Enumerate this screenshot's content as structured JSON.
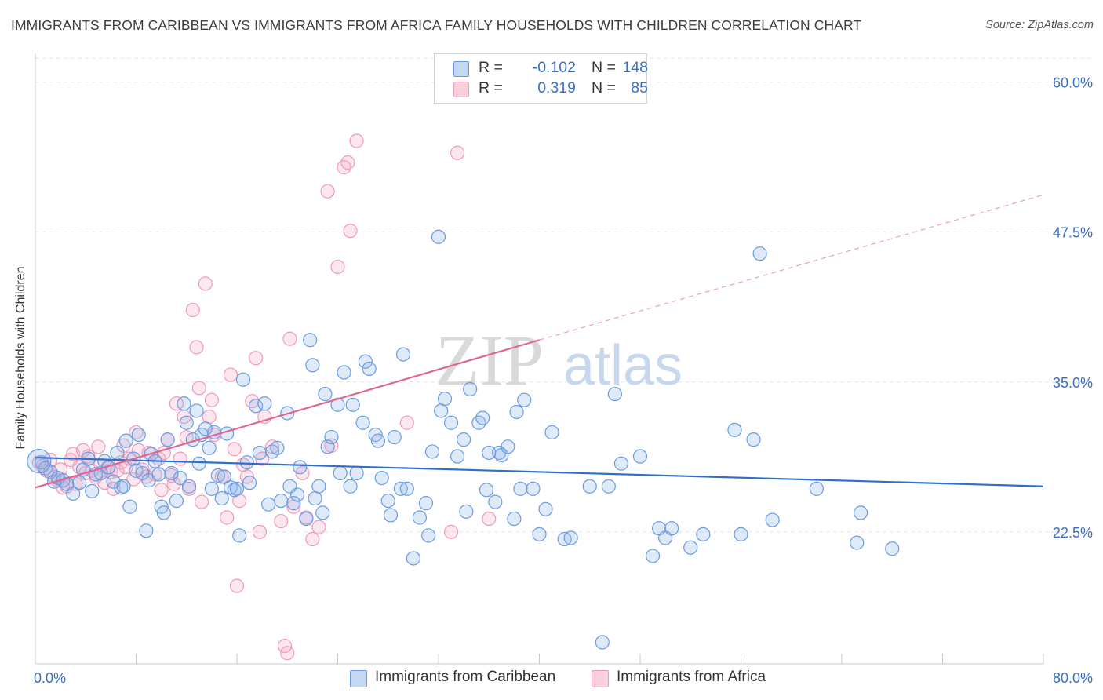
{
  "title": "IMMIGRANTS FROM CARIBBEAN VS IMMIGRANTS FROM AFRICA FAMILY HOUSEHOLDS WITH CHILDREN CORRELATION CHART",
  "source": "Source: ZipAtlas.com",
  "watermark": {
    "zip": "ZIP",
    "atlas": "atlas"
  },
  "legend": {
    "r_label": "R =",
    "n_label": "N =",
    "series": [
      {
        "name": "Immigrants from Caribbean",
        "r": "-0.102",
        "n": "148"
      },
      {
        "name": "Immigrants from Africa",
        "r": "0.319",
        "n": "85"
      }
    ]
  },
  "chart_data": {
    "type": "scatter",
    "title": "IMMIGRANTS FROM CARIBBEAN VS IMMIGRANTS FROM AFRICA FAMILY HOUSEHOLDS WITH CHILDREN CORRELATION CHART",
    "xlabel": "",
    "ylabel": "Family Households with Children",
    "xlim": [
      0,
      80
    ],
    "ylim": [
      11.5,
      62
    ],
    "x_tick_labels": [
      "0.0%",
      "80.0%"
    ],
    "y_ticks": [
      22.5,
      35.0,
      47.5,
      60.0
    ],
    "y_tick_labels": [
      "22.5%",
      "35.0%",
      "47.5%",
      "60.0%"
    ],
    "grid": true,
    "legend_position": "top-center",
    "colors": {
      "caribbean": "#6a9be0",
      "africa": "#ef9ab8",
      "caribbean_line": "#2f6fca",
      "africa_line": "#e0668f",
      "tick": "#3a6fc6"
    },
    "series": [
      {
        "name": "Immigrants from Caribbean",
        "points": [
          [
            0.5,
            28.3
          ],
          [
            0.8,
            27.8
          ],
          [
            1.2,
            27.5
          ],
          [
            1.5,
            26.7
          ],
          [
            1.8,
            27.0
          ],
          [
            2.2,
            26.8
          ],
          [
            2.5,
            26.5
          ],
          [
            3.0,
            25.7
          ],
          [
            3.5,
            26.6
          ],
          [
            3.8,
            27.7
          ],
          [
            4.2,
            28.6
          ],
          [
            4.5,
            25.9
          ],
          [
            4.8,
            27.3
          ],
          [
            5.2,
            27.4
          ],
          [
            5.5,
            28.4
          ],
          [
            5.8,
            27.9
          ],
          [
            6.2,
            26.7
          ],
          [
            6.5,
            29.1
          ],
          [
            6.8,
            26.2
          ],
          [
            7.0,
            26.3
          ],
          [
            7.2,
            30.1
          ],
          [
            7.5,
            24.6
          ],
          [
            7.8,
            28.6
          ],
          [
            8.0,
            27.6
          ],
          [
            8.2,
            30.6
          ],
          [
            8.5,
            27.4
          ],
          [
            8.8,
            22.6
          ],
          [
            9.0,
            26.8
          ],
          [
            9.2,
            29.0
          ],
          [
            9.5,
            28.4
          ],
          [
            9.8,
            27.3
          ],
          [
            10.0,
            24.6
          ],
          [
            10.2,
            24.1
          ],
          [
            10.5,
            30.2
          ],
          [
            10.8,
            27.4
          ],
          [
            11.2,
            25.1
          ],
          [
            11.5,
            27.0
          ],
          [
            11.8,
            33.2
          ],
          [
            12.0,
            31.6
          ],
          [
            12.2,
            26.3
          ],
          [
            12.5,
            30.2
          ],
          [
            12.8,
            32.6
          ],
          [
            13.0,
            28.2
          ],
          [
            13.2,
            30.6
          ],
          [
            13.5,
            31.1
          ],
          [
            13.8,
            29.5
          ],
          [
            14.0,
            26.1
          ],
          [
            14.2,
            30.8
          ],
          [
            14.5,
            27.2
          ],
          [
            14.8,
            25.3
          ],
          [
            15.0,
            27.1
          ],
          [
            15.2,
            30.7
          ],
          [
            15.5,
            26.2
          ],
          [
            15.8,
            26.0
          ],
          [
            16.0,
            26.1
          ],
          [
            16.5,
            35.2
          ],
          [
            16.2,
            22.2
          ],
          [
            16.8,
            28.3
          ],
          [
            17.0,
            26.6
          ],
          [
            17.5,
            33.0
          ],
          [
            17.8,
            29.1
          ],
          [
            18.2,
            33.2
          ],
          [
            18.5,
            24.8
          ],
          [
            18.8,
            29.2
          ],
          [
            19.2,
            29.5
          ],
          [
            19.5,
            25.1
          ],
          [
            20.0,
            32.4
          ],
          [
            20.2,
            26.3
          ],
          [
            20.5,
            24.9
          ],
          [
            20.8,
            25.6
          ],
          [
            21.0,
            27.9
          ],
          [
            21.5,
            23.6
          ],
          [
            21.8,
            38.5
          ],
          [
            22.0,
            36.4
          ],
          [
            22.2,
            25.3
          ],
          [
            22.5,
            26.3
          ],
          [
            22.8,
            24.1
          ],
          [
            23.0,
            34.0
          ],
          [
            23.2,
            29.6
          ],
          [
            23.5,
            30.4
          ],
          [
            24.0,
            33.1
          ],
          [
            24.2,
            27.4
          ],
          [
            24.5,
            35.8
          ],
          [
            25.0,
            26.3
          ],
          [
            25.2,
            33.1
          ],
          [
            25.5,
            27.4
          ],
          [
            26.0,
            31.6
          ],
          [
            26.2,
            36.7
          ],
          [
            26.5,
            36.1
          ],
          [
            27.0,
            30.6
          ],
          [
            27.2,
            30.1
          ],
          [
            27.5,
            27.0
          ],
          [
            28.0,
            25.1
          ],
          [
            28.2,
            23.9
          ],
          [
            28.5,
            30.4
          ],
          [
            29.0,
            26.1
          ],
          [
            29.2,
            37.3
          ],
          [
            29.5,
            26.1
          ],
          [
            30.0,
            20.3
          ],
          [
            30.5,
            23.7
          ],
          [
            31.0,
            24.9
          ],
          [
            31.2,
            22.2
          ],
          [
            31.5,
            29.2
          ],
          [
            32.0,
            47.1
          ],
          [
            32.2,
            32.6
          ],
          [
            32.5,
            33.6
          ],
          [
            33.0,
            31.6
          ],
          [
            33.5,
            28.8
          ],
          [
            34.0,
            30.2
          ],
          [
            34.2,
            24.2
          ],
          [
            34.5,
            34.4
          ],
          [
            35.2,
            31.6
          ],
          [
            35.5,
            32.0
          ],
          [
            35.8,
            26.0
          ],
          [
            36.0,
            29.1
          ],
          [
            36.5,
            25.0
          ],
          [
            36.8,
            29.1
          ],
          [
            37.0,
            28.9
          ],
          [
            37.5,
            29.6
          ],
          [
            38.0,
            23.6
          ],
          [
            38.2,
            32.5
          ],
          [
            38.5,
            26.1
          ],
          [
            38.8,
            33.5
          ],
          [
            39.5,
            26.1
          ],
          [
            40.0,
            22.3
          ],
          [
            40.5,
            24.4
          ],
          [
            41.0,
            30.8
          ],
          [
            42.0,
            21.9
          ],
          [
            42.5,
            22.0
          ],
          [
            44.0,
            26.3
          ],
          [
            45.0,
            13.3
          ],
          [
            45.5,
            26.3
          ],
          [
            46.0,
            34.0
          ],
          [
            46.5,
            28.2
          ],
          [
            48.0,
            28.8
          ],
          [
            49.0,
            20.5
          ],
          [
            49.5,
            22.8
          ],
          [
            50.0,
            22.0
          ],
          [
            50.5,
            22.8
          ],
          [
            52.0,
            21.2
          ],
          [
            53.0,
            22.3
          ],
          [
            55.5,
            31.0
          ],
          [
            56.0,
            22.3
          ],
          [
            57.0,
            30.2
          ],
          [
            57.5,
            45.7
          ],
          [
            58.5,
            23.5
          ],
          [
            62.0,
            26.1
          ],
          [
            65.2,
            21.6
          ],
          [
            65.5,
            24.1
          ],
          [
            68.0,
            21.1
          ]
        ]
      },
      {
        "name": "Immigrants from Africa",
        "points": [
          [
            0.3,
            28.3
          ],
          [
            0.6,
            28.0
          ],
          [
            0.9,
            27.6
          ],
          [
            1.2,
            28.5
          ],
          [
            1.5,
            27.1
          ],
          [
            1.8,
            26.8
          ],
          [
            2.0,
            27.7
          ],
          [
            2.2,
            26.2
          ],
          [
            2.5,
            26.3
          ],
          [
            2.8,
            28.5
          ],
          [
            3.0,
            29.0
          ],
          [
            3.2,
            26.5
          ],
          [
            3.5,
            27.9
          ],
          [
            3.8,
            29.3
          ],
          [
            4.0,
            27.4
          ],
          [
            4.2,
            28.8
          ],
          [
            4.5,
            27.6
          ],
          [
            4.8,
            27.1
          ],
          [
            5.0,
            29.6
          ],
          [
            5.2,
            28.1
          ],
          [
            5.5,
            26.6
          ],
          [
            5.8,
            27.8
          ],
          [
            6.0,
            27.5
          ],
          [
            6.2,
            26.1
          ],
          [
            6.5,
            27.6
          ],
          [
            6.8,
            28.3
          ],
          [
            7.0,
            29.7
          ],
          [
            7.2,
            27.9
          ],
          [
            7.5,
            28.6
          ],
          [
            7.8,
            26.9
          ],
          [
            8.0,
            30.8
          ],
          [
            8.2,
            29.3
          ],
          [
            8.5,
            27.7
          ],
          [
            8.8,
            27.1
          ],
          [
            9.0,
            29.1
          ],
          [
            9.5,
            27.3
          ],
          [
            9.8,
            28.6
          ],
          [
            10.0,
            26.0
          ],
          [
            10.2,
            29.1
          ],
          [
            10.5,
            30.2
          ],
          [
            10.8,
            27.2
          ],
          [
            11.0,
            26.5
          ],
          [
            11.2,
            33.2
          ],
          [
            11.5,
            28.6
          ],
          [
            11.8,
            32.1
          ],
          [
            12.0,
            30.4
          ],
          [
            12.2,
            26.1
          ],
          [
            12.5,
            41.0
          ],
          [
            12.8,
            37.9
          ],
          [
            13.0,
            34.5
          ],
          [
            13.2,
            25.0
          ],
          [
            13.5,
            43.2
          ],
          [
            13.8,
            32.1
          ],
          [
            14.0,
            33.5
          ],
          [
            14.2,
            30.6
          ],
          [
            14.8,
            27.1
          ],
          [
            15.2,
            23.7
          ],
          [
            15.5,
            35.6
          ],
          [
            15.8,
            29.4
          ],
          [
            16.0,
            18.0
          ],
          [
            16.2,
            25.1
          ],
          [
            16.5,
            28.1
          ],
          [
            16.8,
            27.1
          ],
          [
            17.2,
            33.4
          ],
          [
            17.5,
            37.0
          ],
          [
            17.8,
            22.5
          ],
          [
            18.0,
            28.6
          ],
          [
            18.2,
            32.1
          ],
          [
            18.8,
            29.6
          ],
          [
            19.5,
            23.4
          ],
          [
            19.8,
            13.0
          ],
          [
            20.0,
            12.4
          ],
          [
            20.2,
            38.6
          ],
          [
            20.5,
            24.6
          ],
          [
            21.2,
            27.4
          ],
          [
            21.5,
            23.7
          ],
          [
            22.0,
            21.9
          ],
          [
            22.5,
            22.9
          ],
          [
            23.5,
            29.7
          ],
          [
            23.2,
            50.9
          ],
          [
            24.0,
            44.6
          ],
          [
            24.5,
            52.9
          ],
          [
            24.8,
            53.3
          ],
          [
            25.0,
            47.6
          ],
          [
            25.5,
            55.1
          ],
          [
            29.5,
            31.6
          ],
          [
            33.0,
            22.5
          ],
          [
            33.5,
            54.1
          ],
          [
            36.0,
            23.6
          ]
        ]
      }
    ],
    "trend_lines": [
      {
        "series": "Immigrants from Caribbean",
        "style": "solid",
        "x": [
          0,
          80
        ],
        "y": [
          28.7,
          26.3
        ]
      },
      {
        "series": "Immigrants from Africa",
        "style": "solid",
        "x": [
          0,
          40
        ],
        "y": [
          26.2,
          38.5
        ]
      },
      {
        "series": "Immigrants from Africa",
        "style": "dashed",
        "x": [
          40,
          80
        ],
        "y": [
          38.5,
          50.6
        ]
      }
    ]
  }
}
